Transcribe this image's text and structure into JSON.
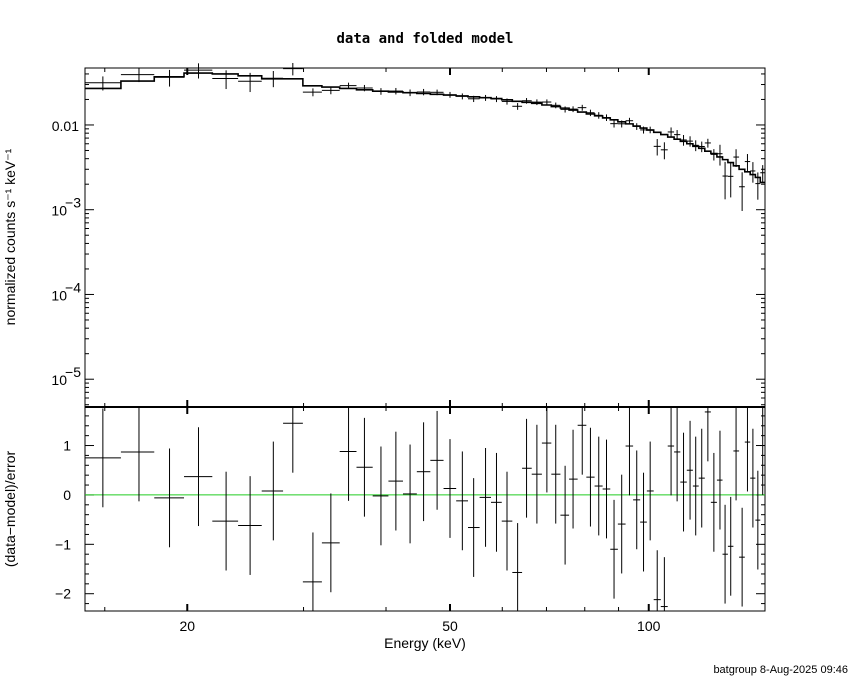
{
  "chart_data": [
    {
      "type": "line",
      "title": "data and folded model",
      "xlabel": "Energy (keV)",
      "ylabel": "normalized counts s⁻¹ keV⁻¹",
      "xscale": "log",
      "yscale": "log",
      "xlim": [
        14,
        150
      ],
      "ylim": [
        4.7e-06,
        0.047
      ],
      "yticks": [
        {
          "value": 0.01,
          "label": "0.01",
          "sup": ""
        },
        {
          "value": 0.001,
          "label": "10",
          "sup": "−3"
        },
        {
          "value": 0.0001,
          "label": "10",
          "sup": "−4"
        },
        {
          "value": 1e-05,
          "label": "10",
          "sup": "−5"
        }
      ],
      "bin_range": [
        14,
        150
      ],
      "energy": [
        14.9,
        16.9,
        18.8,
        20.8,
        22.9,
        24.9,
        27.0,
        28.9,
        31.0,
        33.0,
        35.1,
        37.1,
        39.3,
        41.4,
        43.5,
        45.6,
        47.8,
        50.0,
        52.2,
        54.3,
        56.6,
        58.8,
        61.0,
        63.3,
        65.3,
        67.7,
        70.1,
        72.3,
        74.7,
        76.8,
        79.3,
        81.6,
        84.0,
        86.3,
        88.6,
        91.0,
        93.5,
        95.9,
        98.2,
        100.5,
        103.0,
        105.6,
        108.1,
        110.4,
        112.9,
        115.5,
        117.8,
        120.3,
        122.9,
        125.5,
        128.2,
        130.5,
        133.1,
        135.6,
        138.5,
        141.1,
        143.8,
        146.3,
        148.8
      ],
      "model": [
        0.027,
        0.033,
        0.037,
        0.041,
        0.04,
        0.038,
        0.035,
        0.035,
        0.029,
        0.028,
        0.027,
        0.026,
        0.025,
        0.0245,
        0.024,
        0.0235,
        0.023,
        0.0225,
        0.022,
        0.0215,
        0.021,
        0.0205,
        0.0198,
        0.019,
        0.0185,
        0.018,
        0.0172,
        0.0165,
        0.0158,
        0.015,
        0.0142,
        0.0135,
        0.0128,
        0.0121,
        0.0115,
        0.0109,
        0.0103,
        0.0097,
        0.0092,
        0.0087,
        0.0082,
        0.0077,
        0.0072,
        0.0068,
        0.0064,
        0.006,
        0.0056,
        0.0053,
        0.0049,
        0.0046,
        0.0042,
        0.0039,
        0.0036,
        0.0033,
        0.003,
        0.0028,
        0.0026,
        0.0024,
        0.0021
      ],
      "rel_err": [
        0.22,
        0.22,
        0.22,
        0.22,
        0.22,
        0.22,
        0.22,
        0.22,
        0.09,
        0.09,
        0.09,
        0.09,
        0.09,
        0.09,
        0.09,
        0.09,
        0.08,
        0.08,
        0.08,
        0.08,
        0.08,
        0.08,
        0.08,
        0.08,
        0.08,
        0.08,
        0.08,
        0.08,
        0.08,
        0.08,
        0.09,
        0.09,
        0.09,
        0.09,
        0.09,
        0.09,
        0.09,
        0.09,
        0.09,
        0.09,
        0.15,
        0.15,
        0.15,
        0.15,
        0.15,
        0.15,
        0.15,
        0.15,
        0.15,
        0.15,
        0.3,
        0.3,
        0.3,
        0.3,
        0.3,
        0.3,
        0.3,
        0.3,
        0.3
      ]
    },
    {
      "type": "scatter",
      "xlabel": "Energy (keV)",
      "ylabel": "(data−model)/error",
      "xscale": "log",
      "xlim": [
        14,
        150
      ],
      "ylim": [
        -2.35,
        1.78
      ],
      "xticks": [
        {
          "value": 20,
          "label": "20"
        },
        {
          "value": 50,
          "label": "50"
        },
        {
          "value": 100,
          "label": "100"
        }
      ],
      "yticks": [
        {
          "value": 1,
          "label": "1"
        },
        {
          "value": 0,
          "label": "0"
        },
        {
          "value": -1,
          "label": "−1"
        },
        {
          "value": -2,
          "label": "−2"
        }
      ],
      "zero_line_color": "#22cc22",
      "residual": [
        0.75,
        0.87,
        -0.06,
        0.37,
        -0.53,
        -0.62,
        0.08,
        1.45,
        -1.76,
        -0.97,
        0.88,
        0.56,
        -0.02,
        0.28,
        0.02,
        0.47,
        0.7,
        0.13,
        -0.12,
        -0.66,
        -0.05,
        -0.15,
        -0.53,
        -1.57,
        0.54,
        0.42,
        1.05,
        0.42,
        -0.41,
        0.32,
        1.41,
        0.36,
        0.18,
        0.12,
        -1.1,
        -0.59,
        0.99,
        -0.1,
        -0.55,
        0.08,
        -2.12,
        -2.26,
        0.99,
        0.87,
        0.26,
        0.5,
        0.18,
        0.34,
        1.68,
        -0.15,
        0.3,
        -1.2,
        -1.04,
        0.89,
        -1.26,
        1.07,
        0.34,
        -0.51,
        1.0
      ],
      "residual_err": 1
    }
  ],
  "footer": "batgroup  8-Aug-2025 09:46"
}
